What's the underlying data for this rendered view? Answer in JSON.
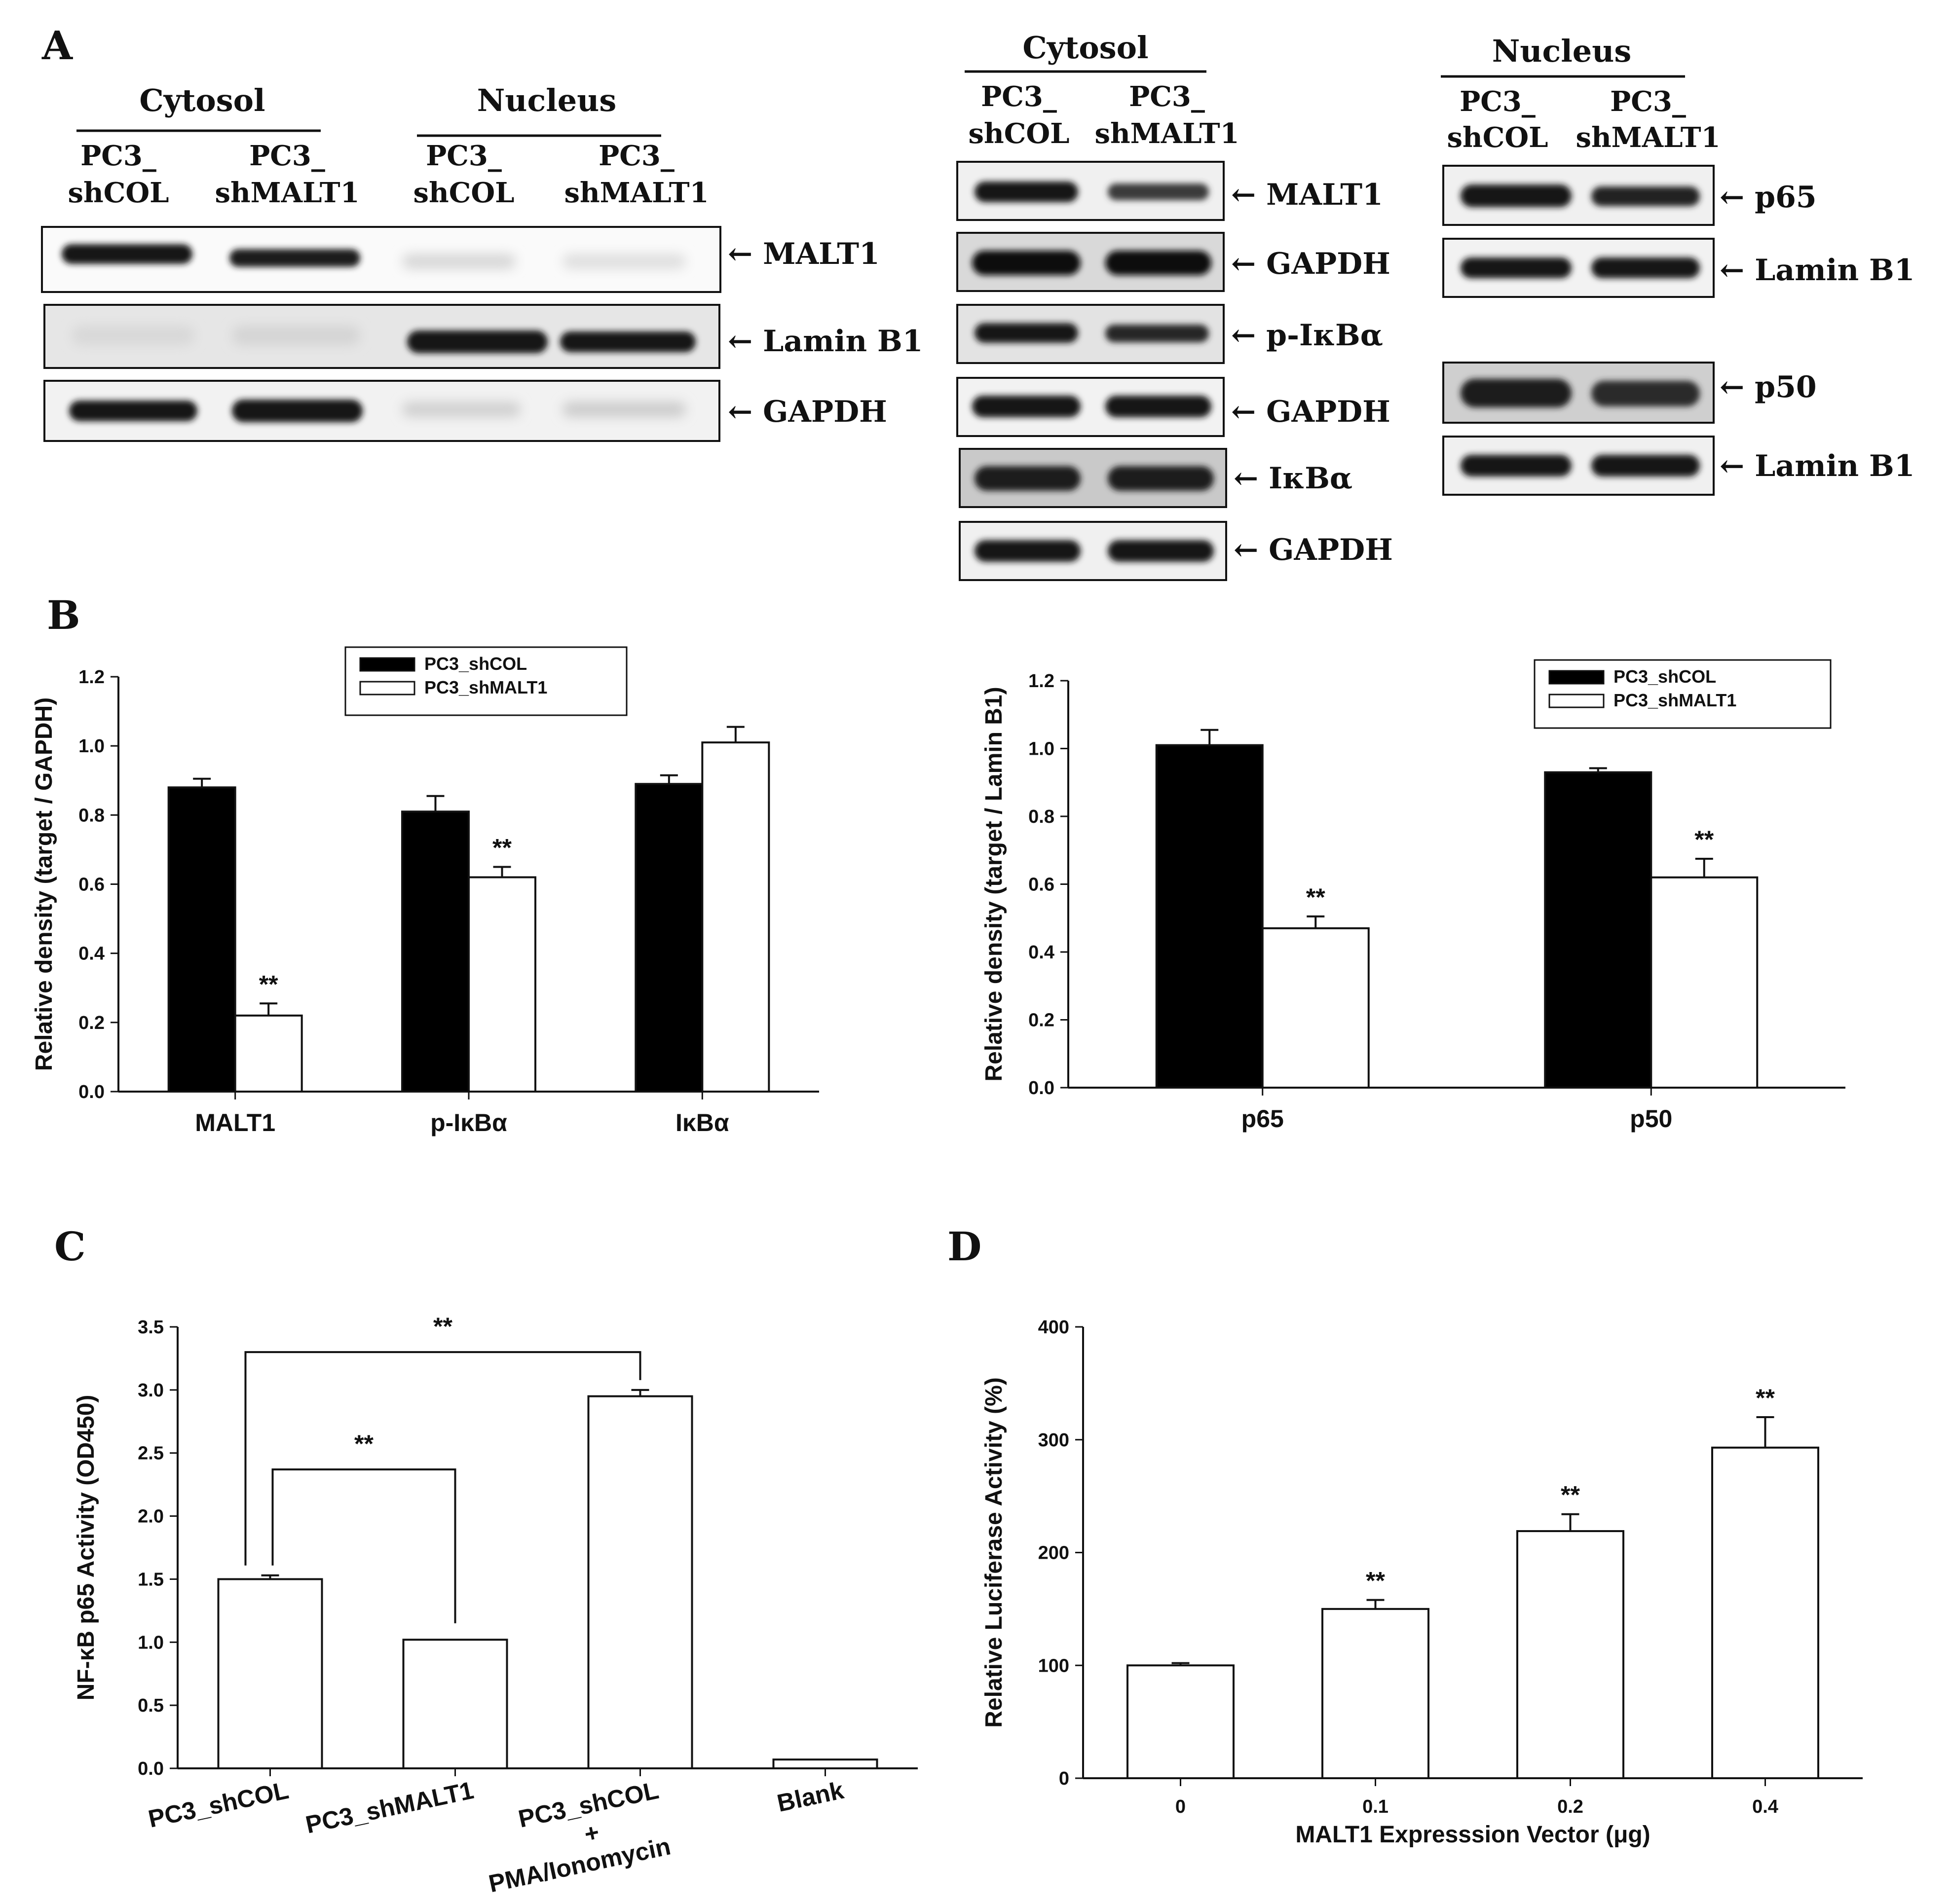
{
  "panels": {
    "A": {
      "letter": "A",
      "left_blot": {
        "groups": [
          "Cytosol",
          "Nucleus"
        ],
        "lanes": [
          [
            "PC3_",
            "shCOL"
          ],
          [
            "PC3_",
            "shMALT1"
          ],
          [
            "PC3_",
            "shCOL"
          ],
          [
            "PC3_",
            "shMALT1"
          ]
        ],
        "bands": [
          "← MALT1",
          "← Lamin B1",
          "← GAPDH"
        ]
      },
      "cytosol_blot": {
        "group": "Cytosol",
        "lanes": [
          [
            "PC3_",
            "shCOL"
          ],
          [
            "PC3_",
            "shMALT1"
          ]
        ],
        "bands": [
          "← MALT1",
          "← GAPDH",
          "← p-IκBα",
          "← GAPDH",
          "← IκBα",
          "← GAPDH"
        ]
      },
      "nucleus_blot": {
        "group": "Nucleus",
        "lanes": [
          [
            "PC3_",
            "shCOL"
          ],
          [
            "PC3_",
            "shMALT1"
          ]
        ],
        "bands": [
          "← p65",
          "← Lamin B1",
          "← p50",
          "← Lamin B1"
        ]
      }
    },
    "B": {
      "letter": "B"
    },
    "C": {
      "letter": "C"
    },
    "D": {
      "letter": "D"
    }
  },
  "chart_data": [
    {
      "id": "B-left",
      "type": "bar",
      "categories": [
        "MALT1",
        "p-IκBα",
        "IκBα"
      ],
      "series": [
        {
          "name": "PC3_shCOL",
          "color": "#000000",
          "values": [
            0.88,
            0.81,
            0.89
          ],
          "errors": [
            0.025,
            0.045,
            0.025
          ]
        },
        {
          "name": "PC3_shMALT1",
          "color": "#ffffff",
          "values": [
            0.22,
            0.62,
            1.01
          ],
          "errors": [
            0.035,
            0.03,
            0.045
          ]
        }
      ],
      "significance": [
        [
          null,
          "**"
        ],
        [
          null,
          "**"
        ],
        [
          null,
          null
        ]
      ],
      "ylabel": "Relative density (target / GAPDH)",
      "xlabel": "",
      "ylim": [
        0,
        1.2
      ],
      "yticks": [
        "0.0",
        "0.2",
        "0.4",
        "0.6",
        "0.8",
        "1.0",
        "1.2"
      ],
      "legend": "top-center"
    },
    {
      "id": "B-right",
      "type": "bar",
      "categories": [
        "p65",
        "p50"
      ],
      "series": [
        {
          "name": "PC3_shCOL",
          "color": "#000000",
          "values": [
            1.01,
            0.93
          ],
          "errors": [
            0.045,
            0.012
          ]
        },
        {
          "name": "PC3_shMALT1",
          "color": "#ffffff",
          "values": [
            0.47,
            0.62
          ],
          "errors": [
            0.035,
            0.055
          ]
        }
      ],
      "significance": [
        [
          null,
          "**"
        ],
        [
          null,
          "**"
        ]
      ],
      "ylabel": "Relative density (target / Lamin B1)",
      "xlabel": "",
      "ylim": [
        0,
        1.2
      ],
      "yticks": [
        "0.0",
        "0.2",
        "0.4",
        "0.6",
        "0.8",
        "1.0",
        "1.2"
      ],
      "legend": "top-right"
    },
    {
      "id": "C",
      "type": "bar",
      "categories": [
        "PC3_shCOL",
        "PC3_shMALT1",
        "PC3_shCOL\n+\nPMA/Ionomycin",
        "Blank"
      ],
      "values": [
        1.5,
        1.02,
        2.95,
        0.07
      ],
      "errors": [
        0.03,
        0.0,
        0.05,
        0.0
      ],
      "comparisons": [
        {
          "from": 0,
          "to": 2,
          "label": "**"
        },
        {
          "from": 0,
          "to": 1,
          "label": "**"
        }
      ],
      "ylabel": "NF-κB p65 Activity (OD450)",
      "xlabel": "",
      "ylim": [
        0,
        3.5
      ],
      "yticks": [
        "0.0",
        "0.5",
        "1.0",
        "1.5",
        "2.0",
        "2.5",
        "3.0",
        "3.5"
      ]
    },
    {
      "id": "D",
      "type": "bar",
      "categories": [
        "0",
        "0.1",
        "0.2",
        "0.4"
      ],
      "values": [
        100,
        150,
        219,
        293
      ],
      "errors": [
        2,
        8,
        15,
        27
      ],
      "significance": [
        null,
        "**",
        "**",
        "**"
      ],
      "ylabel": "Relative Luciferase Activity (%)",
      "xlabel": "MALT1 Expresssion Vector (μg)",
      "ylim": [
        0,
        400
      ],
      "yticks": [
        "0",
        "100",
        "200",
        "300",
        "400"
      ]
    }
  ]
}
